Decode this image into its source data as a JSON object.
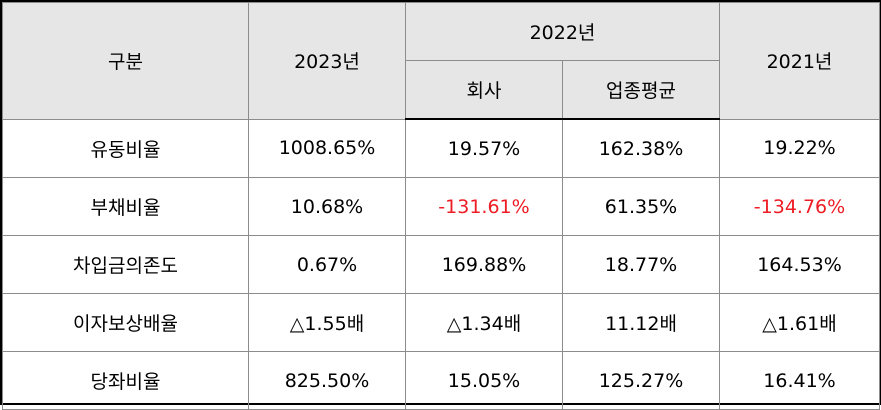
{
  "header": {
    "category": "구분",
    "year_2023": "2023년",
    "year_2022": "2022년",
    "year_2021": "2021년",
    "sub_company": "회사",
    "sub_industry_avg": "업종평균"
  },
  "rows": [
    {
      "label": "유동비율",
      "y2023": "1008.65%",
      "company2022": "19.57%",
      "industry2022": "162.38%",
      "y2021": "19.22%"
    },
    {
      "label": "부채비율",
      "y2023": "10.68%",
      "company2022": "-131.61%",
      "industry2022": "61.35%",
      "y2021": "-134.76%"
    },
    {
      "label": "차입금의존도",
      "y2023": "0.67%",
      "company2022": "169.88%",
      "industry2022": "18.77%",
      "y2021": "164.53%"
    },
    {
      "label": "이자보상배율",
      "y2023": "△1.55배",
      "company2022": "△1.34배",
      "industry2022": "11.12배",
      "y2021": "△1.61배"
    },
    {
      "label": "당좌비율",
      "y2023": "825.50%",
      "company2022": "15.05%",
      "industry2022": "125.27%",
      "y2021": "16.41%"
    }
  ],
  "colors": {
    "header_bg": "#e6e6e6",
    "negative_text": "#ee1c25",
    "border": "#8c8c8c"
  }
}
